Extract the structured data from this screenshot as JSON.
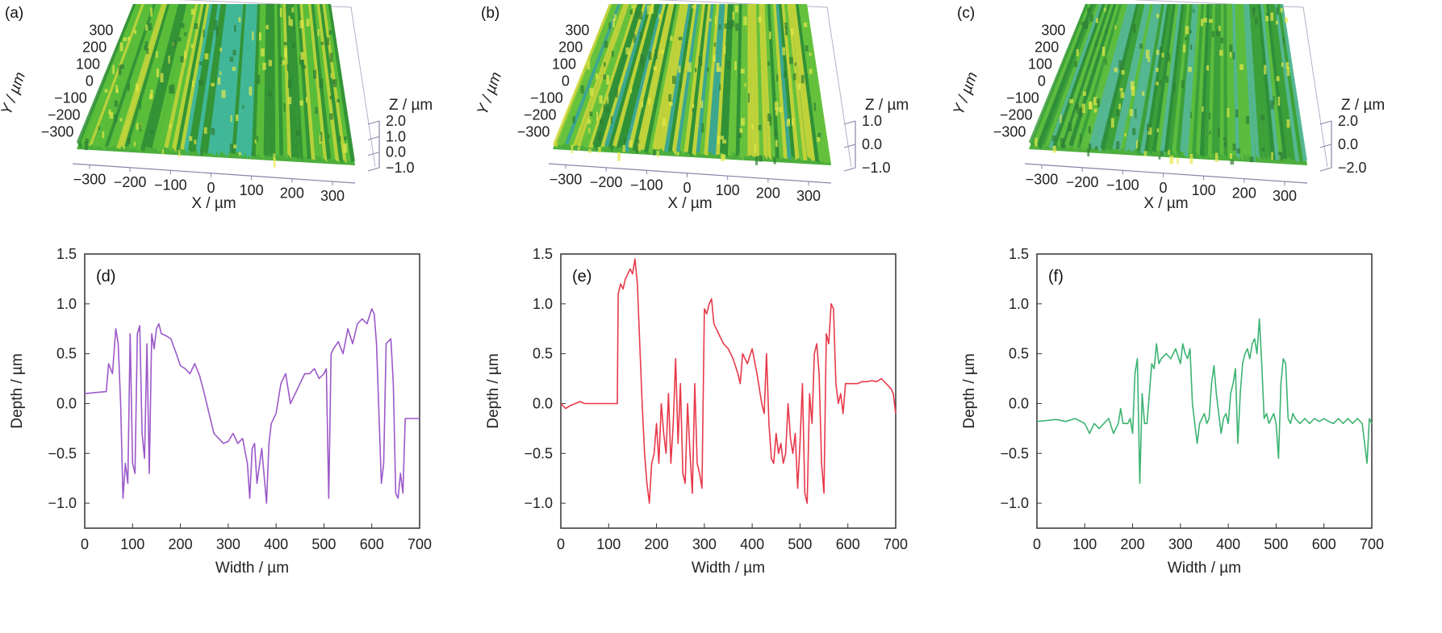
{
  "figure": {
    "surfaces": [
      {
        "id": "a",
        "label": "(a)",
        "xlabel": "X / µm",
        "ylabel": "Y / µm",
        "zlabel": "Z / µm",
        "x_ticks": [
          "−300",
          "−200",
          "−100",
          "0",
          "100",
          "200",
          "300"
        ],
        "y_ticks": [
          "300",
          "200",
          "100",
          "0",
          "−100",
          "−200",
          "−300"
        ],
        "z_ticks": [
          "2.0",
          "1.0",
          "0.0",
          "−1.0"
        ]
      },
      {
        "id": "b",
        "label": "(b)",
        "xlabel": "X / µm",
        "ylabel": "Y / µm",
        "zlabel": "Z / µm",
        "x_ticks": [
          "−300",
          "−200",
          "−100",
          "0",
          "100",
          "200",
          "300"
        ],
        "y_ticks": [
          "300",
          "200",
          "100",
          "0",
          "−100",
          "−200",
          "−300"
        ],
        "z_ticks": [
          "1.0",
          "0.0",
          "−1.0"
        ]
      },
      {
        "id": "c",
        "label": "(c)",
        "xlabel": "X / µm",
        "ylabel": "Y / µm",
        "zlabel": "Z / µm",
        "x_ticks": [
          "−300",
          "−200",
          "−100",
          "0",
          "100",
          "200",
          "300"
        ],
        "y_ticks": [
          "300",
          "200",
          "100",
          "0",
          "−100",
          "−200",
          "−300"
        ],
        "z_ticks": [
          "2.0",
          "0.0",
          "−2.0"
        ]
      }
    ]
  },
  "chart_data": [
    {
      "type": "line",
      "panel": "(d)",
      "xlabel": "Width / µm",
      "ylabel": "Depth / µm",
      "xlim": [
        0,
        700
      ],
      "ylim": [
        -1.25,
        1.5
      ],
      "x_ticks": [
        "0",
        "100",
        "200",
        "300",
        "400",
        "500",
        "600",
        "700"
      ],
      "y_ticks": [
        "1.5",
        "1.0",
        "0.5",
        "0.0",
        "−0.5",
        "−1.0"
      ],
      "color": "#9b59c9",
      "x": [
        0,
        45,
        50,
        58,
        65,
        70,
        75,
        80,
        85,
        90,
        95,
        100,
        105,
        110,
        115,
        120,
        125,
        130,
        135,
        140,
        145,
        150,
        155,
        160,
        170,
        180,
        190,
        200,
        210,
        220,
        230,
        240,
        250,
        260,
        270,
        280,
        290,
        300,
        310,
        320,
        330,
        340,
        345,
        350,
        355,
        360,
        370,
        380,
        385,
        390,
        400,
        410,
        420,
        430,
        440,
        450,
        460,
        470,
        480,
        490,
        500,
        505,
        510,
        515,
        520,
        530,
        540,
        550,
        560,
        570,
        580,
        590,
        600,
        605,
        610,
        620,
        625,
        630,
        640,
        645,
        650,
        655,
        660,
        665,
        670,
        680,
        690,
        700
      ],
      "y": [
        0.1,
        0.12,
        0.4,
        0.3,
        0.75,
        0.6,
        0.0,
        -0.95,
        -0.6,
        -0.8,
        0.7,
        -0.6,
        -0.7,
        0.7,
        0.78,
        -0.3,
        -0.55,
        0.6,
        -0.7,
        0.7,
        0.55,
        0.75,
        0.8,
        0.7,
        0.68,
        0.65,
        0.52,
        0.38,
        0.35,
        0.3,
        0.4,
        0.28,
        0.1,
        -0.1,
        -0.3,
        -0.35,
        -0.4,
        -0.38,
        -0.3,
        -0.4,
        -0.35,
        -0.6,
        -0.95,
        -0.45,
        -0.4,
        -0.8,
        -0.45,
        -1.0,
        -0.4,
        -0.2,
        -0.1,
        0.2,
        0.3,
        0.0,
        0.1,
        0.2,
        0.3,
        0.3,
        0.35,
        0.25,
        0.3,
        0.35,
        -0.95,
        0.5,
        0.55,
        0.62,
        0.5,
        0.75,
        0.6,
        0.8,
        0.85,
        0.8,
        0.95,
        0.9,
        0.6,
        -0.8,
        -0.6,
        0.6,
        0.65,
        0.2,
        -0.9,
        -0.95,
        -0.7,
        -0.9,
        -0.15,
        -0.15,
        -0.15,
        -0.15
      ]
    },
    {
      "type": "line",
      "panel": "(e)",
      "xlabel": "Width / µm",
      "ylabel": "Depth / µm",
      "xlim": [
        0,
        700
      ],
      "ylim": [
        -1.25,
        1.5
      ],
      "x_ticks": [
        "0",
        "100",
        "200",
        "300",
        "400",
        "500",
        "600",
        "700"
      ],
      "y_ticks": [
        "1.5",
        "1.0",
        "0.5",
        "0.0",
        "−0.5",
        "−1.0"
      ],
      "color": "#e8394a",
      "x": [
        0,
        10,
        20,
        30,
        40,
        50,
        60,
        70,
        80,
        90,
        100,
        110,
        118,
        120,
        125,
        130,
        135,
        140,
        145,
        150,
        155,
        160,
        165,
        170,
        175,
        180,
        185,
        190,
        195,
        200,
        205,
        210,
        215,
        220,
        225,
        230,
        235,
        240,
        245,
        250,
        255,
        260,
        265,
        270,
        275,
        280,
        285,
        290,
        295,
        300,
        305,
        310,
        315,
        320,
        325,
        330,
        340,
        350,
        360,
        370,
        375,
        380,
        390,
        400,
        410,
        420,
        425,
        430,
        435,
        440,
        445,
        450,
        455,
        460,
        465,
        470,
        475,
        480,
        485,
        490,
        495,
        500,
        505,
        510,
        515,
        520,
        525,
        530,
        535,
        540,
        545,
        550,
        555,
        560,
        565,
        570,
        575,
        580,
        585,
        590,
        595,
        600,
        610,
        620,
        630,
        640,
        650,
        660,
        670,
        680,
        690,
        695,
        700
      ],
      "y": [
        0.0,
        -0.05,
        -0.02,
        0.0,
        0.02,
        0.0,
        0.0,
        0.0,
        0.0,
        0.0,
        0.0,
        0.0,
        0.0,
        1.1,
        1.2,
        1.15,
        1.25,
        1.3,
        1.35,
        1.3,
        1.45,
        1.2,
        0.6,
        0.0,
        -0.5,
        -0.8,
        -1.0,
        -0.6,
        -0.5,
        -0.2,
        -0.6,
        0.0,
        -0.3,
        -0.5,
        0.1,
        -0.6,
        -0.2,
        0.45,
        -0.4,
        0.2,
        -0.7,
        -0.8,
        0.0,
        -0.5,
        -0.9,
        0.2,
        -0.6,
        -0.7,
        -0.85,
        0.95,
        0.9,
        1.0,
        1.05,
        0.8,
        0.75,
        0.7,
        0.6,
        0.55,
        0.45,
        0.3,
        0.2,
        0.5,
        0.4,
        0.55,
        0.3,
        0.0,
        -0.1,
        0.5,
        -0.2,
        -0.55,
        -0.6,
        -0.3,
        -0.5,
        -0.4,
        -0.6,
        -0.5,
        0.0,
        -0.35,
        -0.5,
        -0.3,
        -0.85,
        -0.4,
        0.2,
        -0.9,
        -1.0,
        0.1,
        -0.2,
        0.5,
        0.6,
        0.3,
        -0.6,
        -0.9,
        0.7,
        0.6,
        1.0,
        0.95,
        0.2,
        0.0,
        0.1,
        -0.1,
        0.2,
        0.2,
        0.2,
        0.2,
        0.22,
        0.22,
        0.23,
        0.22,
        0.25,
        0.2,
        0.15,
        0.1,
        -0.1
      ]
    },
    {
      "type": "line",
      "panel": "(f)",
      "xlabel": "Width / µm",
      "ylabel": "Depth / µm",
      "xlim": [
        0,
        700
      ],
      "ylim": [
        -1.25,
        1.5
      ],
      "x_ticks": [
        "0",
        "100",
        "200",
        "300",
        "400",
        "500",
        "600",
        "700"
      ],
      "y_ticks": [
        "1.5",
        "1.0",
        "0.5",
        "0.0",
        "−0.5",
        "−1.0"
      ],
      "color": "#3cb371",
      "x": [
        0,
        20,
        40,
        60,
        80,
        100,
        110,
        120,
        130,
        140,
        150,
        160,
        170,
        175,
        180,
        190,
        195,
        200,
        205,
        210,
        215,
        220,
        225,
        230,
        240,
        245,
        250,
        255,
        260,
        270,
        280,
        290,
        300,
        305,
        310,
        315,
        320,
        325,
        330,
        335,
        340,
        345,
        350,
        355,
        360,
        365,
        370,
        375,
        380,
        385,
        390,
        395,
        400,
        405,
        410,
        415,
        420,
        425,
        430,
        435,
        440,
        445,
        450,
        455,
        460,
        465,
        470,
        475,
        480,
        485,
        490,
        495,
        500,
        505,
        510,
        515,
        520,
        525,
        530,
        535,
        540,
        550,
        560,
        570,
        580,
        590,
        600,
        610,
        620,
        630,
        640,
        650,
        660,
        670,
        680,
        690,
        695,
        700
      ],
      "y": [
        -0.18,
        -0.17,
        -0.16,
        -0.18,
        -0.15,
        -0.2,
        -0.3,
        -0.2,
        -0.25,
        -0.2,
        -0.15,
        -0.3,
        -0.2,
        -0.05,
        -0.2,
        -0.2,
        -0.15,
        -0.3,
        0.3,
        0.45,
        -0.8,
        0.1,
        -0.2,
        -0.2,
        0.4,
        0.35,
        0.6,
        0.4,
        0.45,
        0.5,
        0.45,
        0.55,
        0.4,
        0.6,
        0.5,
        0.45,
        0.55,
        0.0,
        -0.2,
        -0.4,
        -0.2,
        -0.15,
        -0.1,
        -0.2,
        -0.15,
        0.2,
        0.38,
        0.1,
        -0.1,
        -0.3,
        -0.15,
        -0.1,
        -0.2,
        0.1,
        0.2,
        0.35,
        -0.4,
        0.1,
        0.4,
        0.5,
        0.55,
        0.45,
        0.6,
        0.65,
        0.5,
        0.85,
        0.4,
        -0.15,
        -0.1,
        -0.2,
        -0.15,
        -0.1,
        -0.2,
        -0.55,
        0.2,
        0.45,
        0.4,
        -0.15,
        -0.2,
        -0.1,
        -0.15,
        -0.2,
        -0.15,
        -0.2,
        -0.15,
        -0.18,
        -0.15,
        -0.18,
        -0.2,
        -0.15,
        -0.2,
        -0.15,
        -0.2,
        -0.15,
        -0.2,
        -0.6,
        -0.15,
        -0.2
      ]
    }
  ]
}
